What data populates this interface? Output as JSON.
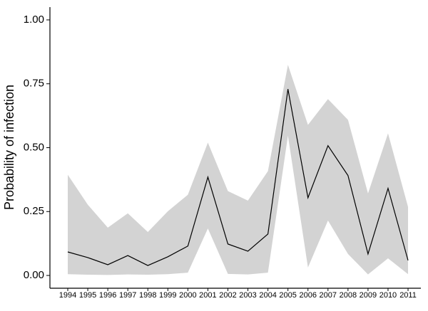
{
  "chart_data": {
    "type": "line",
    "y_label": "Probability of infection",
    "categories": [
      "1994",
      "1995",
      "1996",
      "1997",
      "1998",
      "1999",
      "2000",
      "2001",
      "2002",
      "2003",
      "2004",
      "2005",
      "2006",
      "2007",
      "2008",
      "2009",
      "2010",
      "2011"
    ],
    "values": [
      0.092,
      0.07,
      0.042,
      0.078,
      0.039,
      0.073,
      0.115,
      0.385,
      0.123,
      0.095,
      0.162,
      0.729,
      0.304,
      0.508,
      0.391,
      0.084,
      0.341,
      0.059
    ],
    "upper": [
      0.394,
      0.277,
      0.187,
      0.243,
      0.17,
      0.251,
      0.316,
      0.52,
      0.33,
      0.293,
      0.408,
      0.824,
      0.589,
      0.69,
      0.609,
      0.321,
      0.556,
      0.268
    ],
    "lower": [
      0.005,
      0.003,
      0.002,
      0.004,
      0.003,
      0.005,
      0.011,
      0.184,
      0.006,
      0.004,
      0.011,
      0.547,
      0.031,
      0.215,
      0.084,
      0.004,
      0.067,
      0.005
    ],
    "color": "#000000",
    "band_color": "#d3d3d3",
    "ylim": [
      -0.05,
      1.05
    ],
    "yticks": [
      {
        "value": 0,
        "label": "0.00"
      },
      {
        "value": 0.25,
        "label": "0.25"
      },
      {
        "value": 0.5,
        "label": "0.50"
      },
      {
        "value": 0.75,
        "label": "0.75"
      },
      {
        "value": 1,
        "label": "1.00"
      }
    ]
  }
}
